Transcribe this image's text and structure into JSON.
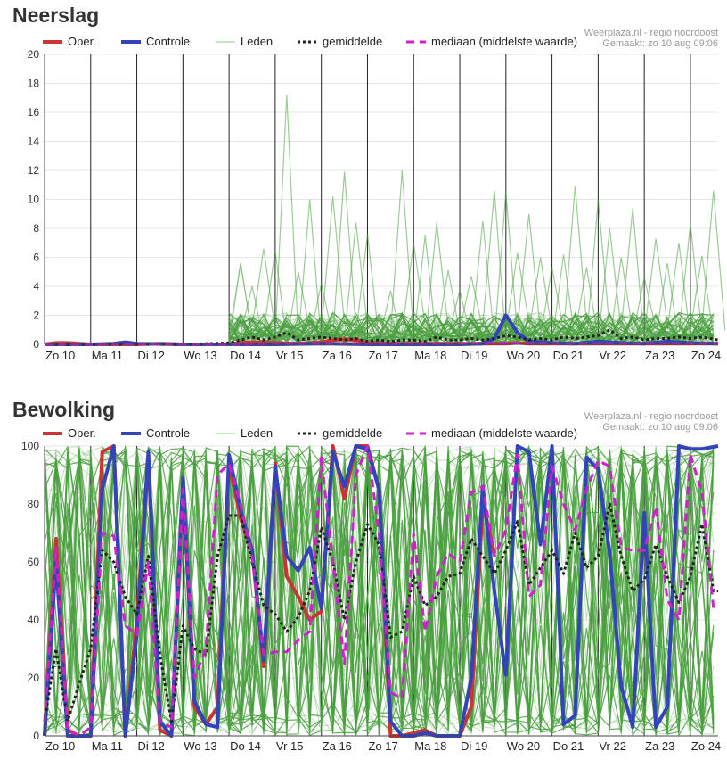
{
  "page": {
    "charts": [
      "neerslag",
      "bewolking"
    ]
  },
  "chart_data": [
    {
      "id": "neerslag",
      "type": "line",
      "title": "Neerslag",
      "source": "Weerplaza.nl - regio noordoost",
      "made": "Gemaakt: zo 10 aug 09:06",
      "ylim": [
        0,
        20
      ],
      "yticks": [
        0,
        2,
        4,
        6,
        8,
        10,
        12,
        14,
        16,
        18,
        20
      ],
      "xlim": [
        0,
        14.6
      ],
      "categories": [
        "Zo 10",
        "Ma 11",
        "Di 12",
        "Wo 13",
        "Do 14",
        "Vr 15",
        "Za 16",
        "Zo 17",
        "Ma 18",
        "Di 19",
        "Wo 20",
        "Do 21",
        "Vr 22",
        "Za 23",
        "Zo 24"
      ],
      "legend": [
        "Oper.",
        "Controle",
        "Leden",
        "gemiddelde",
        "mediaan (middelste waarde)"
      ],
      "legend_position": "top",
      "grid": "vertical-per-day",
      "colors": {
        "oper": "#cc3333",
        "controle": "#3344bb",
        "leden": "#4aa040",
        "gemiddelde": "#222222",
        "mediaan": "#cc22cc"
      },
      "members": {
        "count": 50,
        "step": 0.25,
        "start": 4.0,
        "peaks": [
          {
            "x": 4.25,
            "y": 5.6
          },
          {
            "x": 4.5,
            "y": 4.0
          },
          {
            "x": 4.75,
            "y": 6.6
          },
          {
            "x": 5.0,
            "y": 6.5
          },
          {
            "x": 5.25,
            "y": 17.2
          },
          {
            "x": 5.5,
            "y": 5.0
          },
          {
            "x": 5.75,
            "y": 10.0
          },
          {
            "x": 6.0,
            "y": 4.2
          },
          {
            "x": 6.25,
            "y": 10.2
          },
          {
            "x": 6.5,
            "y": 11.9
          },
          {
            "x": 6.75,
            "y": 8.4
          },
          {
            "x": 7.0,
            "y": 7.6
          },
          {
            "x": 7.5,
            "y": 3.7
          },
          {
            "x": 7.75,
            "y": 12.0
          },
          {
            "x": 8.0,
            "y": 7.0
          },
          {
            "x": 8.25,
            "y": 7.5
          },
          {
            "x": 8.5,
            "y": 8.4
          },
          {
            "x": 8.75,
            "y": 5.1
          },
          {
            "x": 9.0,
            "y": 3.7
          },
          {
            "x": 9.25,
            "y": 4.7
          },
          {
            "x": 9.5,
            "y": 8.5
          },
          {
            "x": 9.75,
            "y": 10.6
          },
          {
            "x": 10.0,
            "y": 10.5
          },
          {
            "x": 10.25,
            "y": 6.3
          },
          {
            "x": 10.5,
            "y": 9.0
          },
          {
            "x": 10.75,
            "y": 6.0
          },
          {
            "x": 11.0,
            "y": 5.3
          },
          {
            "x": 11.25,
            "y": 6.2
          },
          {
            "x": 11.5,
            "y": 10.9
          },
          {
            "x": 11.75,
            "y": 5.3
          },
          {
            "x": 12.0,
            "y": 10.0
          },
          {
            "x": 12.25,
            "y": 8.0
          },
          {
            "x": 12.5,
            "y": 6.0
          },
          {
            "x": 12.75,
            "y": 9.4
          },
          {
            "x": 13.0,
            "y": 4.6
          },
          {
            "x": 13.25,
            "y": 7.3
          },
          {
            "x": 13.5,
            "y": 5.6
          },
          {
            "x": 13.75,
            "y": 7.0
          },
          {
            "x": 14.0,
            "y": 8.3
          },
          {
            "x": 14.25,
            "y": 6.1
          },
          {
            "x": 14.5,
            "y": 10.6
          }
        ]
      },
      "series": [
        {
          "key": "oper",
          "name": "Oper.",
          "x": [
            0,
            0.25,
            0.5,
            1,
            1.5,
            2,
            2.5,
            3,
            3.5,
            4,
            4.25,
            4.5,
            5,
            5.5,
            6,
            6.25,
            6.5,
            6.75,
            7,
            7.5,
            8,
            8.5,
            9,
            9.5,
            10,
            10.25,
            10.5,
            11,
            11.5,
            12,
            12.5,
            13,
            13.5,
            14,
            14.5,
            14.6
          ],
          "y": [
            0,
            0.1,
            0.1,
            0,
            0,
            0,
            0.05,
            0,
            0,
            0,
            0.1,
            0.15,
            0.1,
            0.05,
            0.15,
            0.3,
            0.35,
            0.3,
            0.1,
            0.05,
            0.05,
            0.05,
            0.05,
            0.05,
            0.05,
            0.1,
            0.05,
            0.05,
            0.05,
            0.05,
            0.05,
            0.05,
            0.05,
            0.05,
            0.05,
            0.05
          ]
        },
        {
          "key": "controle",
          "name": "Controle",
          "x": [
            0,
            1,
            1.5,
            1.75,
            2,
            3,
            4,
            5,
            6,
            7,
            8,
            9,
            9.5,
            9.75,
            10.0,
            10.25,
            10.5,
            11,
            11.5,
            12,
            12.5,
            13,
            13.5,
            14,
            14.6
          ],
          "y": [
            0,
            0,
            0.05,
            0.15,
            0.05,
            0,
            0,
            0,
            0.05,
            0,
            0,
            0,
            0.05,
            0.4,
            2.0,
            0.8,
            0.2,
            0.1,
            0.05,
            0.2,
            0.1,
            0.05,
            0.2,
            0.1,
            0.05
          ]
        },
        {
          "key": "gemiddelde",
          "name": "gemiddelde",
          "x": [
            0,
            1,
            2,
            3,
            4,
            4.25,
            4.5,
            4.75,
            5,
            5.25,
            5.5,
            5.75,
            6,
            6.25,
            6.5,
            6.75,
            7,
            7.25,
            7.5,
            7.75,
            8,
            8.25,
            8.5,
            8.75,
            9,
            9.25,
            9.5,
            9.75,
            10,
            10.25,
            10.5,
            10.75,
            11,
            11.25,
            11.5,
            11.75,
            12,
            12.25,
            12.5,
            12.75,
            13,
            13.25,
            13.5,
            13.75,
            14,
            14.25,
            14.6
          ],
          "y": [
            0,
            0,
            0,
            0,
            0.1,
            0.3,
            0.5,
            0.3,
            0.5,
            0.8,
            0.3,
            0.4,
            0.5,
            0.4,
            0.3,
            0.4,
            0.2,
            0.3,
            0.2,
            0.3,
            0.3,
            0.2,
            0.5,
            0.3,
            0.3,
            0.4,
            0.3,
            0.4,
            0.6,
            0.5,
            0.3,
            0.4,
            0.3,
            0.5,
            0.4,
            0.5,
            0.6,
            1.0,
            0.4,
            0.5,
            0.3,
            0.4,
            0.4,
            0.5,
            0.4,
            0.5,
            0.3
          ]
        },
        {
          "key": "mediaan",
          "name": "mediaan (middelste waarde)",
          "x": [
            0,
            4,
            5,
            6,
            7,
            8,
            9,
            10,
            11,
            12,
            13,
            14,
            14.6
          ],
          "y": [
            0,
            0,
            0.05,
            0.05,
            0.05,
            0.05,
            0.05,
            0.1,
            0.05,
            0.05,
            0.05,
            0.05,
            0.05
          ]
        }
      ]
    },
    {
      "id": "bewolking",
      "type": "line",
      "title": "Bewolking",
      "source": "Weerplaza.nl - regio noordoost",
      "made": "Gemaakt: zo 10 aug 09:06",
      "ylim": [
        0,
        100
      ],
      "yticks": [
        0,
        20,
        40,
        60,
        80,
        100
      ],
      "xlim": [
        0,
        14.6
      ],
      "categories": [
        "Zo 10",
        "Ma 11",
        "Di 12",
        "Wo 13",
        "Do 14",
        "Vr 15",
        "Za 16",
        "Zo 17",
        "Ma 18",
        "Di 19",
        "Wo 20",
        "Do 21",
        "Vr 22",
        "Za 23",
        "Zo 24"
      ],
      "legend": [
        "Oper.",
        "Controle",
        "Leden",
        "gemiddelde",
        "mediaan (middelste waarde)"
      ],
      "legend_position": "top",
      "grid": "vertical-per-day",
      "colors": {
        "oper": "#cc3333",
        "controle": "#3344bb",
        "leden": "#4aa040",
        "gemiddelde": "#222222",
        "mediaan": "#cc22cc"
      },
      "members": {
        "count": 50,
        "step": 0.25,
        "start": 0,
        "mode": "full-range"
      },
      "series": [
        {
          "key": "oper",
          "name": "Oper.",
          "x": [
            0,
            0.25,
            0.5,
            0.75,
            1.0,
            1.25,
            1.5,
            1.75,
            2.0,
            2.25,
            2.5,
            2.75,
            3.0,
            3.25,
            3.5,
            3.75,
            4.0,
            4.25,
            4.5,
            4.75,
            5.0,
            5.25,
            5.5,
            5.75,
            6.0,
            6.25,
            6.5,
            6.75,
            7.0,
            7.25,
            7.5,
            7.75,
            8.0,
            8.25,
            8.5,
            8.75,
            9.0,
            9.25,
            9.5,
            9.75
          ],
          "y": [
            0,
            68,
            2,
            0,
            0,
            98,
            100,
            0,
            40,
            97,
            2,
            0,
            87,
            10,
            4,
            10,
            94,
            75,
            64,
            24,
            94,
            55,
            48,
            40,
            43,
            100,
            82,
            100,
            100,
            85,
            0,
            0,
            1,
            2,
            0,
            0,
            0,
            10,
            80,
            63
          ]
        },
        {
          "key": "controle",
          "name": "Controle",
          "x": [
            0,
            0.25,
            0.5,
            0.75,
            1.0,
            1.25,
            1.5,
            1.75,
            2.0,
            2.25,
            2.5,
            2.75,
            3.0,
            3.25,
            3.5,
            3.75,
            4.0,
            4.25,
            4.5,
            4.75,
            5.0,
            5.25,
            5.5,
            5.75,
            6.0,
            6.25,
            6.5,
            6.75,
            7.0,
            7.25,
            7.5,
            7.75,
            8.0,
            8.25,
            8.5,
            8.75,
            9.0,
            9.25,
            9.5,
            9.75,
            10.0,
            10.25,
            10.5,
            10.75,
            11.0,
            11.25,
            11.5,
            11.75,
            12.0,
            12.25,
            12.5,
            12.75,
            13.0,
            13.25,
            13.5,
            13.75,
            14.0,
            14.25,
            14.6
          ],
          "y": [
            0,
            60,
            0,
            0,
            0,
            85,
            100,
            0,
            35,
            98,
            5,
            0,
            89,
            12,
            4,
            3,
            97,
            78,
            64,
            26,
            93,
            62,
            57,
            65,
            44,
            98,
            86,
            100,
            99,
            85,
            5,
            0,
            0,
            1,
            0,
            0,
            0,
            20,
            86,
            50,
            21,
            100,
            98,
            66,
            100,
            4,
            7,
            96,
            92,
            63,
            17,
            3,
            77,
            3,
            10,
            100,
            99,
            99,
            100
          ]
        },
        {
          "key": "gemiddelde",
          "name": "gemiddelde",
          "x": [
            0,
            0.25,
            0.5,
            0.75,
            1.0,
            1.25,
            1.5,
            1.75,
            2.0,
            2.25,
            2.5,
            2.75,
            3.0,
            3.25,
            3.5,
            3.75,
            4.0,
            4.25,
            4.5,
            4.75,
            5.0,
            5.25,
            5.5,
            5.75,
            6.0,
            6.25,
            6.5,
            6.75,
            7.0,
            7.25,
            7.5,
            7.75,
            8.0,
            8.25,
            8.5,
            8.75,
            9.0,
            9.25,
            9.5,
            9.75,
            10.0,
            10.25,
            10.5,
            10.75,
            11.0,
            11.25,
            11.5,
            11.75,
            12.0,
            12.25,
            12.5,
            12.75,
            13.0,
            13.25,
            13.5,
            13.75,
            14.0,
            14.25,
            14.5,
            14.6
          ],
          "y": [
            5,
            30,
            5,
            18,
            30,
            64,
            60,
            48,
            42,
            62,
            28,
            5,
            38,
            30,
            28,
            62,
            76,
            76,
            60,
            45,
            42,
            36,
            41,
            50,
            72,
            60,
            40,
            60,
            73,
            66,
            34,
            36,
            55,
            45,
            48,
            55,
            56,
            68,
            62,
            56,
            64,
            74,
            52,
            58,
            64,
            56,
            70,
            58,
            62,
            80,
            62,
            50,
            54,
            66,
            55,
            46,
            55,
            73,
            50,
            50
          ]
        },
        {
          "key": "mediaan",
          "name": "mediaan (middelste waarde)",
          "x": [
            0,
            0.25,
            0.5,
            0.75,
            1.0,
            1.25,
            1.5,
            1.75,
            2.0,
            2.25,
            2.5,
            2.75,
            3.0,
            3.25,
            3.5,
            3.75,
            4.0,
            4.25,
            4.5,
            4.75,
            5.0,
            5.25,
            5.5,
            5.75,
            6.0,
            6.25,
            6.5,
            6.75,
            7.0,
            7.25,
            7.5,
            7.75,
            8.0,
            8.25,
            8.5,
            8.75,
            9.0,
            9.25,
            9.5,
            9.75,
            10.0,
            10.25,
            10.5,
            10.75,
            11.0,
            11.25,
            11.5,
            11.75,
            12.0,
            12.25,
            12.5,
            12.75,
            13.0,
            13.25,
            13.5,
            13.75,
            14.0,
            14.25,
            14.5
          ],
          "y": [
            5,
            65,
            2,
            0,
            3,
            70,
            69,
            38,
            35,
            60,
            5,
            3,
            85,
            20,
            30,
            90,
            94,
            80,
            62,
            28,
            29,
            29,
            33,
            36,
            96,
            60,
            25,
            90,
            100,
            70,
            15,
            13,
            70,
            36,
            55,
            63,
            60,
            84,
            86,
            62,
            71,
            97,
            48,
            52,
            93,
            80,
            71,
            85,
            95,
            93,
            65,
            64,
            64,
            79,
            47,
            40,
            97,
            84,
            44
          ]
        }
      ]
    }
  ]
}
